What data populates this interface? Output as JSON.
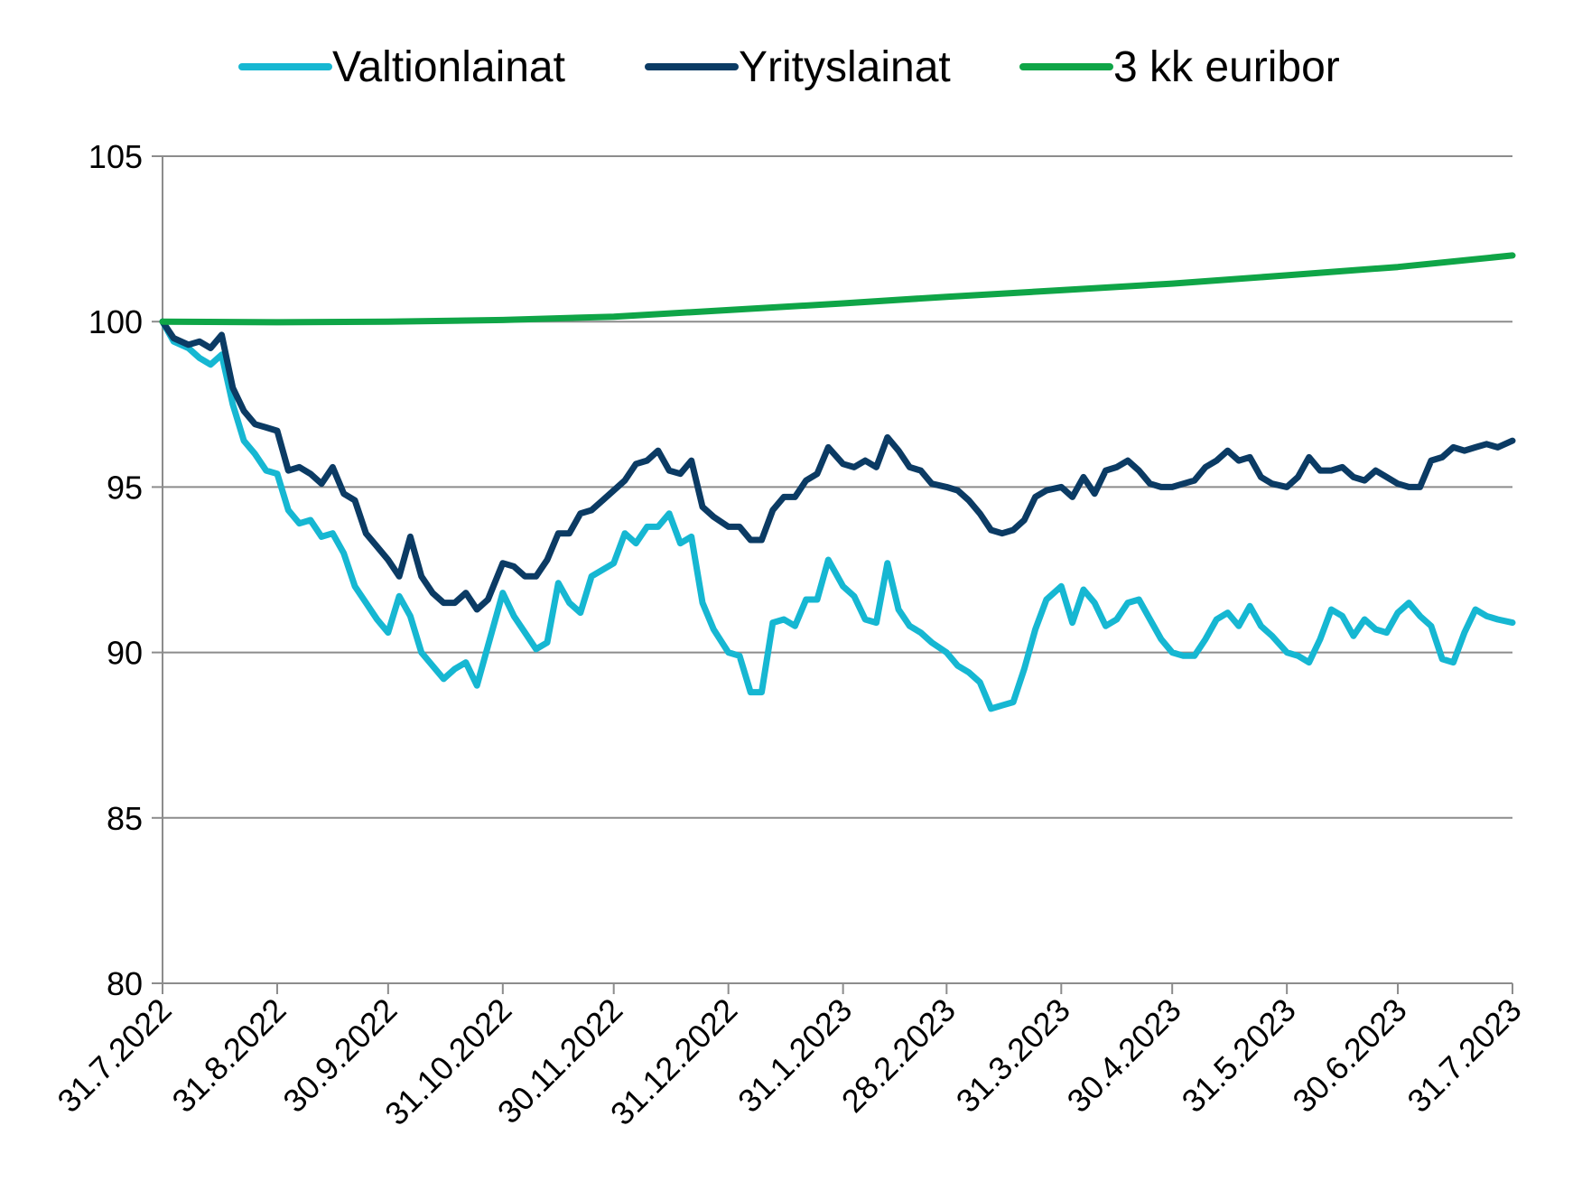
{
  "chart_data": {
    "type": "line",
    "title": "",
    "xlabel": "",
    "ylabel": "",
    "ylim": [
      80,
      105
    ],
    "yticks": [
      80,
      85,
      90,
      95,
      100,
      105
    ],
    "grid": "horizontal",
    "legend": "top",
    "x_tick_labels": [
      "31.7.2022",
      "31.8.2022",
      "30.9.2022",
      "31.10.2022",
      "30.11.2022",
      "31.12.2022",
      "31.1.2023",
      "28.2.2023",
      "31.3.2023",
      "30.4.2023",
      "31.5.2023",
      "30.6.2023",
      "31.7.2023"
    ],
    "series": [
      {
        "name": "Valtionlainat",
        "color": "#16B7D2",
        "x": [
          "2022-07-31",
          "2022-08-03",
          "2022-08-07",
          "2022-08-10",
          "2022-08-13",
          "2022-08-16",
          "2022-08-19",
          "2022-08-22",
          "2022-08-25",
          "2022-08-28",
          "2022-08-31",
          "2022-09-03",
          "2022-09-06",
          "2022-09-09",
          "2022-09-12",
          "2022-09-15",
          "2022-09-18",
          "2022-09-21",
          "2022-09-24",
          "2022-09-27",
          "2022-09-30",
          "2022-10-03",
          "2022-10-06",
          "2022-10-09",
          "2022-10-12",
          "2022-10-15",
          "2022-10-18",
          "2022-10-21",
          "2022-10-24",
          "2022-10-27",
          "2022-10-31",
          "2022-11-03",
          "2022-11-06",
          "2022-11-09",
          "2022-11-12",
          "2022-11-15",
          "2022-11-18",
          "2022-11-21",
          "2022-11-24",
          "2022-11-27",
          "2022-11-30",
          "2022-12-03",
          "2022-12-06",
          "2022-12-09",
          "2022-12-12",
          "2022-12-15",
          "2022-12-18",
          "2022-12-21",
          "2022-12-24",
          "2022-12-27",
          "2022-12-31",
          "2023-01-03",
          "2023-01-06",
          "2023-01-09",
          "2023-01-12",
          "2023-01-15",
          "2023-01-18",
          "2023-01-21",
          "2023-01-24",
          "2023-01-27",
          "2023-01-31",
          "2023-02-03",
          "2023-02-06",
          "2023-02-09",
          "2023-02-12",
          "2023-02-15",
          "2023-02-18",
          "2023-02-21",
          "2023-02-24",
          "2023-02-28",
          "2023-03-03",
          "2023-03-06",
          "2023-03-09",
          "2023-03-12",
          "2023-03-15",
          "2023-03-18",
          "2023-03-21",
          "2023-03-24",
          "2023-03-27",
          "2023-03-31",
          "2023-04-03",
          "2023-04-06",
          "2023-04-09",
          "2023-04-12",
          "2023-04-15",
          "2023-04-18",
          "2023-04-21",
          "2023-04-24",
          "2023-04-27",
          "2023-04-30",
          "2023-05-03",
          "2023-05-06",
          "2023-05-09",
          "2023-05-12",
          "2023-05-15",
          "2023-05-18",
          "2023-05-21",
          "2023-05-24",
          "2023-05-27",
          "2023-05-31",
          "2023-06-03",
          "2023-06-06",
          "2023-06-09",
          "2023-06-12",
          "2023-06-15",
          "2023-06-18",
          "2023-06-21",
          "2023-06-24",
          "2023-06-27",
          "2023-06-30",
          "2023-07-03",
          "2023-07-06",
          "2023-07-09",
          "2023-07-12",
          "2023-07-15",
          "2023-07-18",
          "2023-07-21",
          "2023-07-24",
          "2023-07-27",
          "2023-07-31"
        ],
        "values": [
          100,
          99.4,
          99.2,
          98.9,
          98.7,
          99.0,
          97.5,
          96.4,
          96.0,
          95.5,
          95.4,
          94.3,
          93.9,
          94.0,
          93.5,
          93.6,
          93.0,
          92.0,
          91.5,
          91.0,
          90.6,
          91.7,
          91.1,
          90.0,
          89.6,
          89.2,
          89.5,
          89.7,
          89.0,
          90.2,
          91.8,
          91.1,
          90.6,
          90.1,
          90.3,
          92.1,
          91.5,
          91.2,
          92.3,
          92.5,
          92.7,
          93.6,
          93.3,
          93.8,
          93.8,
          94.2,
          93.3,
          93.5,
          91.5,
          90.7,
          90.0,
          89.9,
          88.8,
          88.8,
          90.9,
          91.0,
          90.8,
          91.6,
          91.6,
          92.8,
          92.0,
          91.7,
          91.0,
          90.9,
          92.7,
          91.3,
          90.8,
          90.6,
          90.3,
          90.0,
          89.6,
          89.4,
          89.1,
          88.3,
          88.4,
          88.5,
          89.5,
          90.7,
          91.6,
          92.0,
          90.9,
          91.9,
          91.5,
          90.8,
          91.0,
          91.5,
          91.6,
          91.0,
          90.4,
          90.0,
          89.9,
          89.9,
          90.4,
          91.0,
          91.2,
          90.8,
          91.4,
          90.8,
          90.5,
          90.0,
          89.9,
          89.7,
          90.4,
          91.3,
          91.1,
          90.5,
          91.0,
          90.7,
          90.6,
          91.2,
          91.5,
          91.1,
          90.8,
          89.8,
          89.7,
          90.6,
          91.3,
          91.1,
          91.0,
          90.9
        ]
      },
      {
        "name": "Yrityslainat",
        "color": "#0B3B64",
        "x": [
          "2022-07-31",
          "2022-08-03",
          "2022-08-07",
          "2022-08-10",
          "2022-08-13",
          "2022-08-16",
          "2022-08-19",
          "2022-08-22",
          "2022-08-25",
          "2022-08-28",
          "2022-08-31",
          "2022-09-03",
          "2022-09-06",
          "2022-09-09",
          "2022-09-12",
          "2022-09-15",
          "2022-09-18",
          "2022-09-21",
          "2022-09-24",
          "2022-09-27",
          "2022-09-30",
          "2022-10-03",
          "2022-10-06",
          "2022-10-09",
          "2022-10-12",
          "2022-10-15",
          "2022-10-18",
          "2022-10-21",
          "2022-10-24",
          "2022-10-27",
          "2022-10-31",
          "2022-11-03",
          "2022-11-06",
          "2022-11-09",
          "2022-11-12",
          "2022-11-15",
          "2022-11-18",
          "2022-11-21",
          "2022-11-24",
          "2022-11-27",
          "2022-11-30",
          "2022-12-03",
          "2022-12-06",
          "2022-12-09",
          "2022-12-12",
          "2022-12-15",
          "2022-12-18",
          "2022-12-21",
          "2022-12-24",
          "2022-12-27",
          "2022-12-31",
          "2023-01-03",
          "2023-01-06",
          "2023-01-09",
          "2023-01-12",
          "2023-01-15",
          "2023-01-18",
          "2023-01-21",
          "2023-01-24",
          "2023-01-27",
          "2023-01-31",
          "2023-02-03",
          "2023-02-06",
          "2023-02-09",
          "2023-02-12",
          "2023-02-15",
          "2023-02-18",
          "2023-02-21",
          "2023-02-24",
          "2023-02-28",
          "2023-03-03",
          "2023-03-06",
          "2023-03-09",
          "2023-03-12",
          "2023-03-15",
          "2023-03-18",
          "2023-03-21",
          "2023-03-24",
          "2023-03-27",
          "2023-03-31",
          "2023-04-03",
          "2023-04-06",
          "2023-04-09",
          "2023-04-12",
          "2023-04-15",
          "2023-04-18",
          "2023-04-21",
          "2023-04-24",
          "2023-04-27",
          "2023-04-30",
          "2023-05-03",
          "2023-05-06",
          "2023-05-09",
          "2023-05-12",
          "2023-05-15",
          "2023-05-18",
          "2023-05-21",
          "2023-05-24",
          "2023-05-27",
          "2023-05-31",
          "2023-06-03",
          "2023-06-06",
          "2023-06-09",
          "2023-06-12",
          "2023-06-15",
          "2023-06-18",
          "2023-06-21",
          "2023-06-24",
          "2023-06-27",
          "2023-06-30",
          "2023-07-03",
          "2023-07-06",
          "2023-07-09",
          "2023-07-12",
          "2023-07-15",
          "2023-07-18",
          "2023-07-21",
          "2023-07-24",
          "2023-07-27",
          "2023-07-31"
        ],
        "values": [
          100,
          99.5,
          99.3,
          99.4,
          99.2,
          99.6,
          98.0,
          97.3,
          96.9,
          96.8,
          96.7,
          95.5,
          95.6,
          95.4,
          95.1,
          95.6,
          94.8,
          94.6,
          93.6,
          93.2,
          92.8,
          92.3,
          93.5,
          92.3,
          91.8,
          91.5,
          91.5,
          91.8,
          91.3,
          91.6,
          92.7,
          92.6,
          92.3,
          92.3,
          92.8,
          93.6,
          93.6,
          94.2,
          94.3,
          94.6,
          94.9,
          95.2,
          95.7,
          95.8,
          96.1,
          95.5,
          95.4,
          95.8,
          94.4,
          94.1,
          93.8,
          93.8,
          93.4,
          93.4,
          94.3,
          94.7,
          94.7,
          95.2,
          95.4,
          96.2,
          95.7,
          95.6,
          95.8,
          95.6,
          96.5,
          96.1,
          95.6,
          95.5,
          95.1,
          95.0,
          94.9,
          94.6,
          94.2,
          93.7,
          93.6,
          93.7,
          94.0,
          94.7,
          94.9,
          95.0,
          94.7,
          95.3,
          94.8,
          95.5,
          95.6,
          95.8,
          95.5,
          95.1,
          95.0,
          95.0,
          95.1,
          95.2,
          95.6,
          95.8,
          96.1,
          95.8,
          95.9,
          95.3,
          95.1,
          95.0,
          95.3,
          95.9,
          95.5,
          95.5,
          95.6,
          95.3,
          95.2,
          95.5,
          95.3,
          95.1,
          95.0,
          95.0,
          95.8,
          95.9,
          96.2,
          96.1,
          96.2,
          96.3,
          96.2,
          96.4
        ]
      },
      {
        "name": "3 kk euribor",
        "color": "#0FA547",
        "x": [
          "2022-07-31",
          "2022-08-31",
          "2022-09-30",
          "2022-10-31",
          "2022-11-30",
          "2022-12-31",
          "2023-01-31",
          "2023-02-28",
          "2023-03-31",
          "2023-04-30",
          "2023-05-31",
          "2023-06-30",
          "2023-07-31"
        ],
        "values": [
          100,
          99.98,
          100.0,
          100.05,
          100.15,
          100.35,
          100.55,
          100.75,
          100.95,
          101.15,
          101.4,
          101.65,
          102.0
        ]
      }
    ]
  }
}
